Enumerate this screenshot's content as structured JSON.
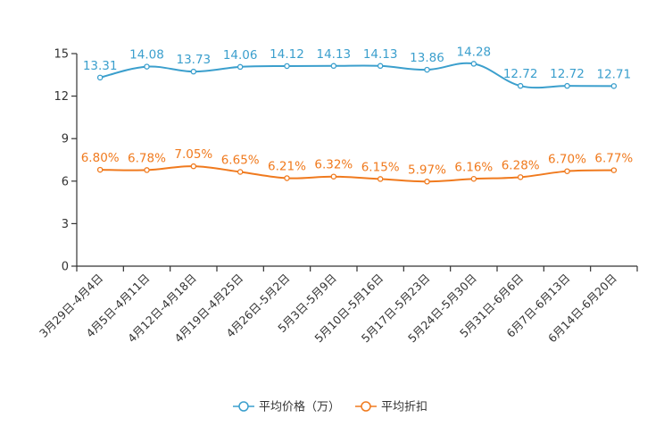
{
  "chart_data": {
    "type": "line",
    "categories": [
      "3月29日-4月4日",
      "4月5日-4月11日",
      "4月12日-4月18日",
      "4月19日-4月25日",
      "4月26日-5月2日",
      "5月3日-5月9日",
      "5月10日-5月16日",
      "5月17日-5月23日",
      "5月24日-5月30日",
      "5月31日-6月6日",
      "6月7日-6月13日",
      "6月14日-6月20日"
    ],
    "ylim": [
      0,
      15
    ],
    "yticks": [
      "0",
      "3",
      "6",
      "9",
      "12",
      "15"
    ],
    "series": [
      {
        "name": "平均价格（万）",
        "color": "#3b9fcd",
        "values": [
          13.31,
          14.08,
          13.73,
          14.06,
          14.12,
          14.13,
          14.13,
          13.86,
          14.28,
          12.72,
          12.72,
          12.71
        ],
        "labels": [
          "13.31",
          "14.08",
          "13.73",
          "14.06",
          "14.12",
          "14.13",
          "14.13",
          "13.86",
          "14.28",
          "12.72",
          "12.72",
          "12.71"
        ]
      },
      {
        "name": "平均折扣",
        "color": "#f07a1e",
        "values": [
          6.8,
          6.78,
          7.05,
          6.65,
          6.21,
          6.32,
          6.15,
          5.97,
          6.16,
          6.28,
          6.7,
          6.77
        ],
        "labels": [
          "6.80%",
          "6.78%",
          "7.05%",
          "6.65%",
          "6.21%",
          "6.32%",
          "6.15%",
          "5.97%",
          "6.16%",
          "6.28%",
          "6.70%",
          "6.77%"
        ]
      }
    ],
    "legend_position": "bottom-center"
  }
}
